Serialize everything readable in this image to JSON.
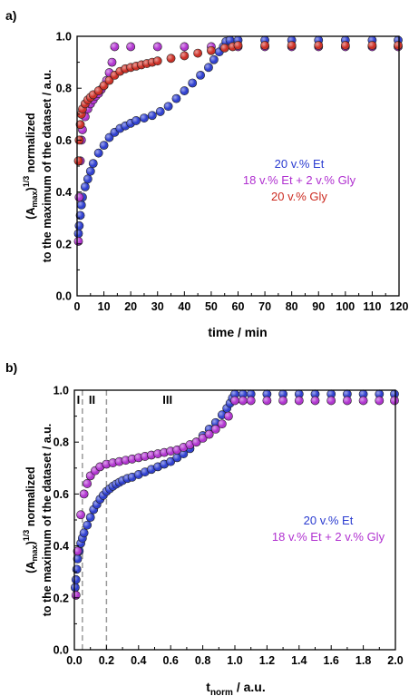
{
  "figure": {
    "panels": [
      {
        "label": "a)",
        "xlabel": "time / min",
        "ylabel_lines": [
          "(A",
          "max",
          ")",
          "1/3",
          " normalized",
          "to the maximum of the dataset / a.u."
        ],
        "legend_entries": [
          "20 v.% Et",
          "18 v.% Et + 2 v.% Gly",
          "20 v.% Gly"
        ],
        "region_labels": []
      },
      {
        "label": "b)",
        "xlabel_lines": [
          "t",
          "norm",
          " / a.u."
        ],
        "ylabel_lines": [
          "(A",
          "max",
          ")",
          "1/3",
          " normalized",
          "to the maximum of the dataset / a.u."
        ],
        "legend_entries": [
          "20 v.% Et",
          "18 v.% Et + 2 v.% Gly"
        ],
        "region_labels": [
          "I",
          "II",
          "III"
        ]
      }
    ]
  },
  "chart_data": [
    {
      "type": "scatter",
      "title": "",
      "xlabel": "time / min",
      "ylabel": "(Amax)1/3 normalized to the maximum of the dataset / a.u.",
      "xlim": [
        0,
        120
      ],
      "ylim": [
        0,
        1.0
      ],
      "xticks": [
        0,
        10,
        20,
        30,
        40,
        50,
        60,
        70,
        80,
        90,
        100,
        110,
        120
      ],
      "yticks": [
        0.0,
        0.2,
        0.4,
        0.6,
        0.8,
        1.0
      ],
      "grid": false,
      "legend_placement": "center-right",
      "series": [
        {
          "name": "20 v.% Et",
          "color": "#2a3bd0",
          "x": [
            0.5,
            0.8,
            1.2,
            1.6,
            2,
            3,
            4,
            5,
            6,
            8,
            10,
            12,
            14,
            16,
            18,
            20,
            22,
            25,
            28,
            31,
            34,
            37,
            40,
            43,
            46,
            49,
            51,
            53,
            54.5,
            55.5,
            57,
            60,
            70,
            80,
            90,
            100,
            110,
            120
          ],
          "y": [
            0.24,
            0.27,
            0.31,
            0.35,
            0.38,
            0.42,
            0.45,
            0.48,
            0.51,
            0.55,
            0.58,
            0.61,
            0.63,
            0.645,
            0.655,
            0.665,
            0.675,
            0.685,
            0.695,
            0.71,
            0.73,
            0.76,
            0.79,
            0.82,
            0.85,
            0.88,
            0.91,
            0.94,
            0.96,
            0.98,
            0.985,
            0.985,
            0.985,
            0.985,
            0.985,
            0.985,
            0.985,
            0.985
          ]
        },
        {
          "name": "18 v.% Et + 2 v.% Gly",
          "color": "#b030d0",
          "x": [
            0.5,
            0.8,
            1.2,
            1.6,
            2,
            3,
            4,
            5,
            6,
            7,
            8,
            9,
            10,
            11,
            12,
            13,
            14,
            20,
            30,
            40,
            50,
            60,
            70,
            80,
            90,
            100,
            110,
            120
          ],
          "y": [
            0.21,
            0.38,
            0.52,
            0.6,
            0.64,
            0.69,
            0.72,
            0.74,
            0.755,
            0.77,
            0.78,
            0.795,
            0.81,
            0.83,
            0.86,
            0.9,
            0.96,
            0.96,
            0.96,
            0.96,
            0.96,
            0.96,
            0.96,
            0.96,
            0.96,
            0.96,
            0.96,
            0.96
          ]
        },
        {
          "name": "20 v.% Gly",
          "color": "#cc2a20",
          "x": [
            0.5,
            0.8,
            1.2,
            1.6,
            2,
            3,
            4,
            5,
            6,
            8,
            10,
            12,
            14,
            16,
            18,
            20,
            22,
            24,
            26,
            28,
            30,
            35,
            40,
            45,
            50,
            55,
            58,
            60,
            70,
            80,
            90,
            100,
            110,
            120
          ],
          "y": [
            0.52,
            0.6,
            0.66,
            0.7,
            0.72,
            0.74,
            0.755,
            0.765,
            0.775,
            0.79,
            0.81,
            0.83,
            0.85,
            0.865,
            0.875,
            0.88,
            0.885,
            0.89,
            0.895,
            0.9,
            0.905,
            0.915,
            0.925,
            0.935,
            0.945,
            0.955,
            0.96,
            0.965,
            0.965,
            0.965,
            0.965,
            0.965,
            0.965,
            0.965
          ]
        }
      ]
    },
    {
      "type": "scatter",
      "title": "",
      "xlabel": "tnorm / a.u.",
      "ylabel": "(Amax)1/3 normalized to the maximum of the dataset / a.u.",
      "xlim": [
        0,
        2.0
      ],
      "ylim": [
        0,
        1.0
      ],
      "xticks": [
        0.0,
        0.2,
        0.4,
        0.6,
        0.8,
        1.0,
        1.2,
        1.4,
        1.6,
        1.8,
        2.0
      ],
      "yticks": [
        0.0,
        0.2,
        0.4,
        0.6,
        0.8,
        1.0
      ],
      "grid": false,
      "legend_placement": "center-right",
      "vertical_reference_lines": [
        0.05,
        0.2
      ],
      "region_labels": [
        {
          "text": "I",
          "x": 0.025
        },
        {
          "text": "II",
          "x": 0.11
        },
        {
          "text": "III",
          "x": 0.58
        }
      ],
      "series": [
        {
          "name": "20 v.% Et",
          "color": "#2a3bd0",
          "x": [
            0.005,
            0.01,
            0.015,
            0.02,
            0.03,
            0.04,
            0.05,
            0.06,
            0.08,
            0.1,
            0.12,
            0.14,
            0.16,
            0.18,
            0.2,
            0.22,
            0.24,
            0.26,
            0.28,
            0.3,
            0.33,
            0.36,
            0.4,
            0.44,
            0.48,
            0.52,
            0.56,
            0.6,
            0.64,
            0.68,
            0.72,
            0.76,
            0.8,
            0.84,
            0.88,
            0.92,
            0.95,
            0.97,
            0.985,
            1.0,
            1.05,
            1.1,
            1.2,
            1.3,
            1.4,
            1.5,
            1.6,
            1.7,
            1.8,
            1.9,
            2.0
          ],
          "y": [
            0.24,
            0.27,
            0.31,
            0.35,
            0.38,
            0.41,
            0.43,
            0.45,
            0.48,
            0.51,
            0.54,
            0.56,
            0.58,
            0.595,
            0.61,
            0.62,
            0.63,
            0.638,
            0.645,
            0.652,
            0.66,
            0.665,
            0.675,
            0.685,
            0.695,
            0.705,
            0.715,
            0.725,
            0.74,
            0.755,
            0.775,
            0.8,
            0.825,
            0.85,
            0.875,
            0.905,
            0.93,
            0.95,
            0.97,
            0.985,
            0.985,
            0.985,
            0.985,
            0.985,
            0.985,
            0.985,
            0.985,
            0.985,
            0.985,
            0.985,
            0.985
          ]
        },
        {
          "name": "18 v.% Et + 2 v.% Gly",
          "color": "#b030d0",
          "x": [
            0.01,
            0.02,
            0.04,
            0.06,
            0.08,
            0.1,
            0.13,
            0.16,
            0.2,
            0.24,
            0.28,
            0.32,
            0.36,
            0.4,
            0.44,
            0.48,
            0.52,
            0.56,
            0.6,
            0.64,
            0.68,
            0.72,
            0.76,
            0.8,
            0.84,
            0.88,
            0.92,
            0.96,
            1.0,
            1.05,
            1.1,
            1.2,
            1.3,
            1.4,
            1.5,
            1.6,
            1.7,
            1.8,
            1.9,
            2.0
          ],
          "y": [
            0.21,
            0.38,
            0.52,
            0.6,
            0.64,
            0.67,
            0.69,
            0.705,
            0.715,
            0.72,
            0.725,
            0.73,
            0.735,
            0.74,
            0.745,
            0.75,
            0.755,
            0.76,
            0.765,
            0.77,
            0.78,
            0.79,
            0.8,
            0.815,
            0.83,
            0.85,
            0.87,
            0.9,
            0.96,
            0.96,
            0.96,
            0.96,
            0.96,
            0.96,
            0.96,
            0.96,
            0.96,
            0.96,
            0.96,
            0.96
          ]
        }
      ]
    }
  ]
}
